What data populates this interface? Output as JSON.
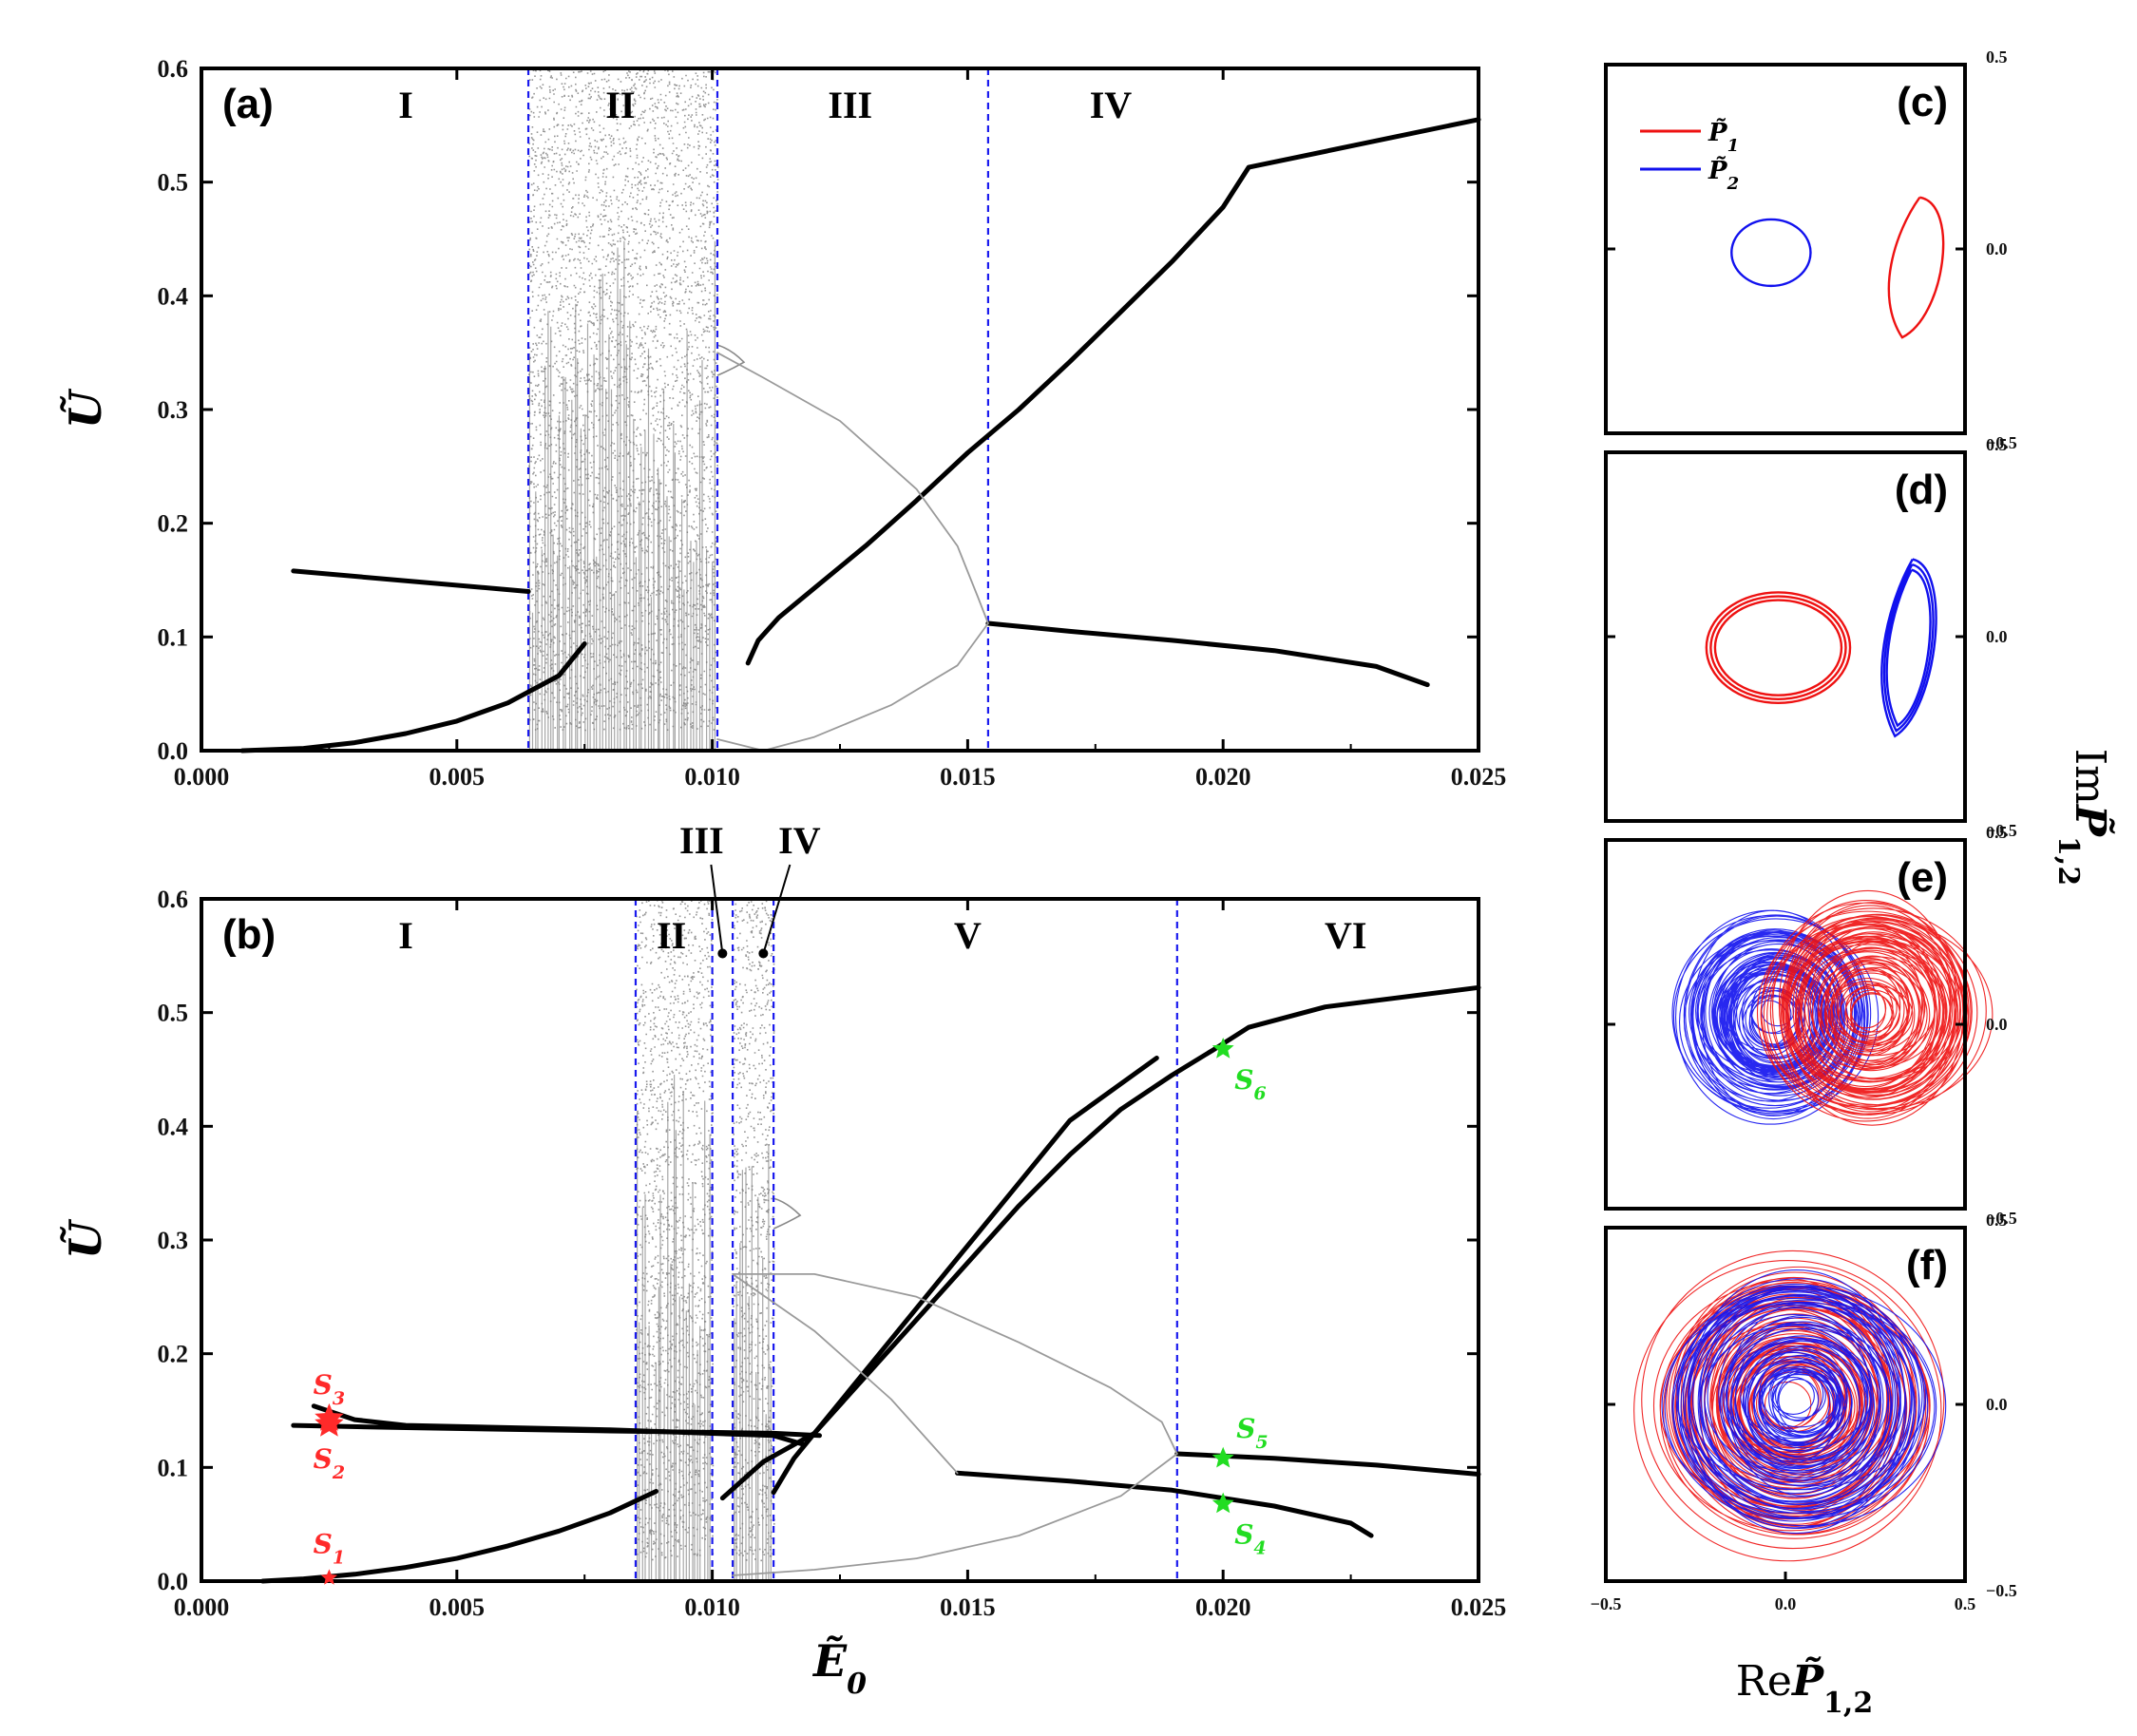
{
  "chart_data": [
    {
      "panel": "(a)",
      "type": "line",
      "xlim": [
        0,
        0.025
      ],
      "ylim": [
        0,
        0.6
      ],
      "x_ticks": [
        "0.000",
        "0.005",
        "0.010",
        "0.015",
        "0.020",
        "0.025"
      ],
      "y_ticks": [
        "0.0",
        "0.1",
        "0.2",
        "0.3",
        "0.4",
        "0.5",
        "0.6"
      ],
      "ylabel": "Ũ",
      "regions": [
        {
          "label": "I",
          "x": 0.004
        },
        {
          "label": "II",
          "x": 0.0082
        },
        {
          "label": "III",
          "x": 0.0127
        },
        {
          "label": "IV",
          "x": 0.0178
        }
      ],
      "boundaries": [
        0.0064,
        0.0101,
        0.0154
      ],
      "chaos_bands": [
        [
          0.0064,
          0.0101
        ]
      ],
      "series": [
        {
          "name": "upper-branch-I",
          "style": "thick",
          "points": [
            [
              0.0018,
              0.158
            ],
            [
              0.0064,
              0.14
            ]
          ]
        },
        {
          "name": "lower-branch-I",
          "style": "thick",
          "points": [
            [
              0.0008,
              0.0
            ],
            [
              0.002,
              0.002
            ],
            [
              0.003,
              0.007
            ],
            [
              0.004,
              0.015
            ],
            [
              0.005,
              0.026
            ],
            [
              0.006,
              0.042
            ],
            [
              0.007,
              0.066
            ],
            [
              0.0075,
              0.094
            ]
          ]
        },
        {
          "name": "rising-branch",
          "style": "thick",
          "points": [
            [
              0.0107,
              0.077
            ],
            [
              0.0109,
              0.097
            ],
            [
              0.0113,
              0.117
            ],
            [
              0.012,
              0.143
            ],
            [
              0.013,
              0.18
            ],
            [
              0.014,
              0.22
            ],
            [
              0.015,
              0.262
            ],
            [
              0.016,
              0.3
            ],
            [
              0.017,
              0.342
            ],
            [
              0.018,
              0.386
            ],
            [
              0.019,
              0.43
            ],
            [
              0.02,
              0.478
            ],
            [
              0.0205,
              0.513
            ],
            [
              0.025,
              0.555
            ]
          ]
        },
        {
          "name": "falling-branch-IV",
          "style": "thick",
          "points": [
            [
              0.0154,
              0.112
            ],
            [
              0.017,
              0.105
            ],
            [
              0.019,
              0.097
            ],
            [
              0.021,
              0.088
            ],
            [
              0.023,
              0.074
            ],
            [
              0.024,
              0.058
            ]
          ]
        },
        {
          "name": "unstable-upper",
          "style": "thin",
          "points": [
            [
              0.0101,
              0.35
            ],
            [
              0.011,
              0.328
            ],
            [
              0.0125,
              0.29
            ],
            [
              0.014,
              0.23
            ],
            [
              0.0148,
              0.18
            ],
            [
              0.0152,
              0.135
            ],
            [
              0.0154,
              0.112
            ]
          ]
        },
        {
          "name": "unstable-lower",
          "style": "thin",
          "points": [
            [
              0.0101,
              0.01
            ],
            [
              0.011,
              0.0
            ],
            [
              0.012,
              0.012
            ],
            [
              0.0135,
              0.04
            ],
            [
              0.0148,
              0.075
            ],
            [
              0.0154,
              0.112
            ]
          ]
        }
      ]
    },
    {
      "panel": "(b)",
      "type": "line",
      "xlim": [
        0,
        0.025
      ],
      "ylim": [
        0,
        0.6
      ],
      "x_ticks": [
        "0.000",
        "0.005",
        "0.010",
        "0.015",
        "0.020",
        "0.025"
      ],
      "y_ticks": [
        "0.0",
        "0.1",
        "0.2",
        "0.3",
        "0.4",
        "0.5",
        "0.6"
      ],
      "xlabel": "Ẽ",
      "xlabel_sub": "0",
      "ylabel": "Ũ",
      "regions": [
        {
          "label": "I",
          "x": 0.004
        },
        {
          "label": "II",
          "x": 0.0092
        },
        {
          "label": "V",
          "x": 0.015
        },
        {
          "label": "VI",
          "x": 0.0224
        }
      ],
      "callout_regions": [
        {
          "label": "III",
          "x": 0.0102
        },
        {
          "label": "IV",
          "x": 0.011
        }
      ],
      "boundaries": [
        0.0085,
        0.01,
        0.0104,
        0.0112,
        0.0191
      ],
      "chaos_bands": [
        [
          0.0085,
          0.01
        ],
        [
          0.0104,
          0.0112
        ]
      ],
      "series": [
        {
          "name": "upper-branch-I-a",
          "style": "thick",
          "points": [
            [
              0.0022,
              0.154
            ],
            [
              0.003,
              0.142
            ],
            [
              0.004,
              0.137
            ],
            [
              0.008,
              0.133
            ],
            [
              0.0112,
              0.128
            ],
            [
              0.0118,
              0.12
            ]
          ]
        },
        {
          "name": "upper-branch-I-b",
          "style": "thick",
          "points": [
            [
              0.0018,
              0.137
            ],
            [
              0.004,
              0.135
            ],
            [
              0.008,
              0.132
            ],
            [
              0.0112,
              0.13
            ],
            [
              0.0121,
              0.128
            ]
          ]
        },
        {
          "name": "lower-branch-I",
          "style": "thick",
          "points": [
            [
              0.0012,
              0.0
            ],
            [
              0.002,
              0.002
            ],
            [
              0.003,
              0.006
            ],
            [
              0.004,
              0.012
            ],
            [
              0.005,
              0.02
            ],
            [
              0.006,
              0.031
            ],
            [
              0.007,
              0.044
            ],
            [
              0.008,
              0.06
            ],
            [
              0.0089,
              0.079
            ]
          ]
        },
        {
          "name": "rising-branch-a",
          "style": "thick",
          "points": [
            [
              0.0102,
              0.073
            ],
            [
              0.011,
              0.105
            ],
            [
              0.012,
              0.13
            ],
            [
              0.013,
              0.185
            ],
            [
              0.014,
              0.24
            ],
            [
              0.015,
              0.295
            ],
            [
              0.016,
              0.35
            ],
            [
              0.017,
              0.405
            ],
            [
              0.0187,
              0.46
            ]
          ]
        },
        {
          "name": "rising-branch-b",
          "style": "thick",
          "points": [
            [
              0.0112,
              0.078
            ],
            [
              0.0116,
              0.108
            ],
            [
              0.012,
              0.13
            ],
            [
              0.013,
              0.18
            ],
            [
              0.014,
              0.23
            ],
            [
              0.015,
              0.28
            ],
            [
              0.016,
              0.33
            ],
            [
              0.017,
              0.375
            ],
            [
              0.018,
              0.415
            ],
            [
              0.019,
              0.445
            ],
            [
              0.0198,
              0.467
            ],
            [
              0.0205,
              0.487
            ],
            [
              0.022,
              0.505
            ],
            [
              0.025,
              0.522
            ]
          ]
        },
        {
          "name": "falling-branch-VI-upper",
          "style": "thick",
          "points": [
            [
              0.0191,
              0.112
            ],
            [
              0.021,
              0.108
            ],
            [
              0.023,
              0.102
            ],
            [
              0.025,
              0.094
            ]
          ]
        },
        {
          "name": "falling-branch-V",
          "style": "thick",
          "points": [
            [
              0.0148,
              0.095
            ],
            [
              0.017,
              0.088
            ],
            [
              0.019,
              0.08
            ],
            [
              0.021,
              0.066
            ],
            [
              0.0225,
              0.051
            ],
            [
              0.0229,
              0.04
            ]
          ]
        },
        {
          "name": "unstable-upper",
          "style": "thin",
          "points": [
            [
              0.0104,
              0.27
            ],
            [
              0.012,
              0.27
            ],
            [
              0.014,
              0.25
            ],
            [
              0.016,
              0.21
            ],
            [
              0.0178,
              0.17
            ],
            [
              0.0188,
              0.14
            ],
            [
              0.0191,
              0.112
            ]
          ]
        },
        {
          "name": "unstable-mid",
          "style": "thin",
          "points": [
            [
              0.0104,
              0.27
            ],
            [
              0.012,
              0.22
            ],
            [
              0.0135,
              0.16
            ],
            [
              0.0145,
              0.11
            ],
            [
              0.0148,
              0.095
            ]
          ]
        },
        {
          "name": "unstable-lower",
          "style": "thin",
          "points": [
            [
              0.0104,
              0.005
            ],
            [
              0.012,
              0.01
            ],
            [
              0.014,
              0.02
            ],
            [
              0.016,
              0.04
            ],
            [
              0.018,
              0.075
            ],
            [
              0.0191,
              0.112
            ]
          ]
        }
      ],
      "markers": [
        {
          "label": "S",
          "sub": "1",
          "x": 0.0025,
          "y": 0.003,
          "color": "#ff2a2a",
          "size": "small",
          "label_side": "above"
        },
        {
          "label": "S",
          "sub": "2",
          "x": 0.0025,
          "y": 0.138,
          "color": "#ff2a2a",
          "size": "large",
          "label_side": "below"
        },
        {
          "label": "S",
          "sub": "3",
          "x": 0.0025,
          "y": 0.143,
          "color": "#ff2a2a",
          "size": "large",
          "label_side": "above"
        },
        {
          "label": "S",
          "sub": "4",
          "x": 0.02,
          "y": 0.068,
          "color": "#22dd22",
          "size": "medium",
          "label_side": "below-right"
        },
        {
          "label": "S",
          "sub": "5",
          "x": 0.02,
          "y": 0.108,
          "color": "#22dd22",
          "size": "medium",
          "label_side": "above-right"
        },
        {
          "label": "S",
          "sub": "6",
          "x": 0.02,
          "y": 0.468,
          "color": "#22dd22",
          "size": "medium",
          "label_side": "below-right"
        }
      ]
    },
    {
      "panel": "(c)",
      "type": "line",
      "xlim": [
        -0.5,
        0.5
      ],
      "ylim": [
        -0.5,
        0.5
      ],
      "y_ticks": [
        "0.5",
        "0.0",
        "−0.5"
      ],
      "legend": [
        {
          "name": "P̃",
          "sub": "1",
          "color": "#ee1111"
        },
        {
          "name": "P̃",
          "sub": "2",
          "color": "#1111ee"
        }
      ],
      "series": [
        {
          "name": "P1",
          "color": "#ee1111",
          "shape": "crescent",
          "center": [
            0.36,
            -0.05
          ],
          "rx": 0.07,
          "ry": 0.19
        },
        {
          "name": "P2",
          "color": "#1111ee",
          "shape": "ellipse",
          "center": [
            -0.04,
            -0.01
          ],
          "rx": 0.11,
          "ry": 0.09
        }
      ]
    },
    {
      "panel": "(d)",
      "type": "line",
      "xlim": [
        -0.5,
        0.5
      ],
      "ylim": [
        -0.5,
        0.5
      ],
      "y_ticks": [
        "0.5",
        "0.0",
        "−0.5"
      ],
      "series": [
        {
          "name": "P1",
          "color": "#ee1111",
          "shape": "ellipse",
          "center": [
            -0.02,
            -0.03
          ],
          "rx": 0.2,
          "ry": 0.15
        },
        {
          "name": "P2",
          "color": "#1111ee",
          "shape": "crescent",
          "center": [
            0.34,
            -0.03
          ],
          "rx": 0.07,
          "ry": 0.24
        }
      ]
    },
    {
      "panel": "(e)",
      "type": "line",
      "xlim": [
        -0.5,
        0.5
      ],
      "ylim": [
        -0.5,
        0.5
      ],
      "y_ticks": [
        "0.5",
        "0.0",
        "−0.5"
      ],
      "series": [
        {
          "name": "P2",
          "color": "#1111ee",
          "shape": "spiral",
          "center": [
            -0.03,
            0.02
          ],
          "r_min": 0.04,
          "r_max": 0.27
        },
        {
          "name": "P1",
          "color": "#ee1111",
          "shape": "spiral",
          "center": [
            0.24,
            0.04
          ],
          "r_min": 0.05,
          "r_max": 0.3
        }
      ]
    },
    {
      "panel": "(f)",
      "type": "line",
      "xlim": [
        -0.5,
        0.5
      ],
      "ylim": [
        -0.5,
        0.5
      ],
      "x_ticks": [
        "−0.5",
        "0.0",
        "0.5"
      ],
      "y_ticks": [
        "0.5",
        "0.0",
        "−0.5"
      ],
      "xlabel": "Re",
      "xlabel_var": "P̃",
      "xlabel_sub": "1,2",
      "ylabel": "Im",
      "ylabel_var": "P̃",
      "ylabel_sub": "1,2",
      "series": [
        {
          "name": "P1",
          "color": "#ee1111",
          "shape": "spiral",
          "center": [
            0.02,
            0.0
          ],
          "r_min": 0.05,
          "r_max": 0.38
        },
        {
          "name": "P2",
          "color": "#1111ee",
          "shape": "spiral",
          "center": [
            0.04,
            0.01
          ],
          "r_min": 0.05,
          "r_max": 0.36
        }
      ]
    }
  ]
}
